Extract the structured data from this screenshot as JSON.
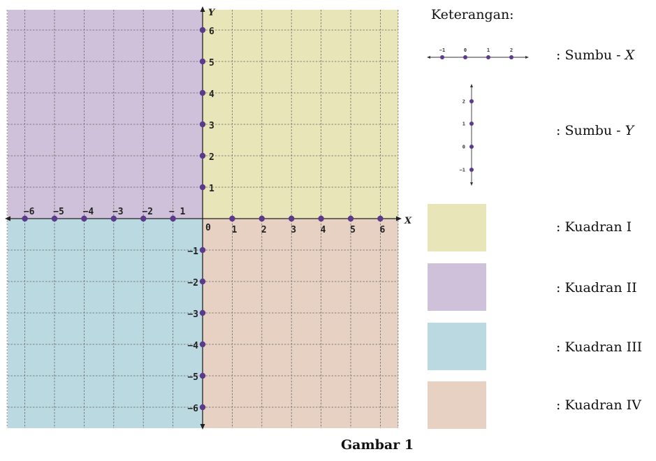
{
  "figure": {
    "caption": "Gambar 1",
    "plane": {
      "x_label": "X",
      "y_label": "Y",
      "origin_label": "0",
      "x_ticks": [
        "−6",
        "−5",
        "−4",
        "−3",
        "−2",
        "− 1",
        "1",
        "2",
        "3",
        "4",
        "5",
        "6"
      ],
      "y_ticks_positive": [
        "1",
        "2",
        "3",
        "4",
        "5",
        "6"
      ],
      "y_ticks_negative": [
        "−1",
        "−2",
        "−3",
        "−4",
        "−5",
        "−6"
      ],
      "quadrant_colors": {
        "I": "#e8e6b8",
        "II": "#cfc1d9",
        "III": "#bad9e1",
        "IV": "#e6d1c3"
      },
      "point_color": "#5b3a8c",
      "grid": true
    },
    "legend": {
      "title": "Keterangan:",
      "x_axis_sample_ticks": [
        "−1",
        "0",
        "1",
        "2"
      ],
      "y_axis_sample_ticks": [
        "2",
        "1",
        "0",
        "−1"
      ],
      "items": [
        {
          "label_prefix": ": Sumbu - ",
          "label_var": "X"
        },
        {
          "label_prefix": ": Sumbu - ",
          "label_var": "Y"
        },
        {
          "label": ": Kuadran I"
        },
        {
          "label": ": Kuadran II"
        },
        {
          "label": ": Kuadran III"
        },
        {
          "label": ": Kuadran IV"
        }
      ]
    }
  }
}
